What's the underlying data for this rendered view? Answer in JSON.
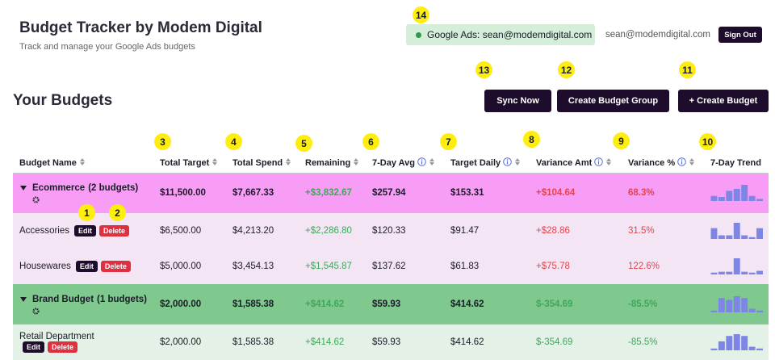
{
  "header": {
    "title": "Budget Tracker by Modem Digital",
    "subtitle": "Track and manage your Google Ads budgets",
    "connection": "Google Ads: sean@modemdigital.com",
    "user": "sean@modemdigital.com",
    "sign_out": "Sign Out"
  },
  "section": {
    "title": "Your Budgets",
    "buttons": [
      "Sync Now",
      "Create Budget Group",
      "+ Create Budget"
    ]
  },
  "markers": [
    "1",
    "2",
    "3",
    "4",
    "5",
    "6",
    "7",
    "8",
    "9",
    "10",
    "11",
    "12",
    "13",
    "14"
  ],
  "actions": {
    "edit": "Edit",
    "delete": "Delete"
  },
  "table": {
    "columns": [
      {
        "label": "Budget Name",
        "info": false,
        "sort": true
      },
      {
        "label": "Total Target",
        "info": false,
        "sort": true
      },
      {
        "label": "Total Spend",
        "info": false,
        "sort": true
      },
      {
        "label": "Remaining",
        "info": false,
        "sort": true
      },
      {
        "label": "7-Day Avg",
        "info": true,
        "sort": true
      },
      {
        "label": "Target Daily",
        "info": true,
        "sort": true
      },
      {
        "label": "Variance Amt",
        "info": true,
        "sort": true
      },
      {
        "label": "Variance %",
        "info": true,
        "sort": true
      },
      {
        "label": "7-Day Trend",
        "info": false,
        "sort": false
      }
    ],
    "trend_color": "#7d86e6",
    "rows": [
      {
        "type": "group",
        "name": "Ecommerce",
        "note": "(2 budgets)",
        "background": "#f79df6",
        "variance_color": "#e8424a",
        "cells": [
          "$11,500.00",
          "$7,667.33",
          "+$3,832.67",
          "$257.94",
          "$153.31",
          "+$104.64",
          "68.3%"
        ],
        "trend": [
          5,
          4,
          10,
          12,
          16,
          5,
          2
        ]
      },
      {
        "type": "item",
        "name": "Accessories",
        "background": "#f3e5f3",
        "variance_color": "#e8424a",
        "cells": [
          "$6,500.00",
          "$4,213.20",
          "+$2,286.80",
          "$120.33",
          "$91.47",
          "+$28.86",
          "31.5%"
        ],
        "trend": [
          12,
          4,
          4,
          18,
          4,
          2,
          12
        ]
      },
      {
        "type": "item",
        "name": "Housewares",
        "background": "#f3e5f3",
        "variance_color": "#e8424a",
        "cells": [
          "$5,000.00",
          "$3,454.13",
          "+$1,545.87",
          "$137.62",
          "$61.83",
          "+$75.78",
          "122.6%"
        ],
        "trend": [
          2,
          3,
          3,
          18,
          3,
          2,
          4
        ]
      },
      {
        "type": "group",
        "name": "Brand Budget",
        "note": "(1 budgets)",
        "background": "#7fc98f",
        "variance_color": "#3ea85a",
        "cells": [
          "$2,000.00",
          "$1,585.38",
          "+$414.62",
          "$59.93",
          "$414.62",
          "$-354.69",
          "-85.5%"
        ],
        "trend": [
          2,
          16,
          14,
          18,
          16,
          4,
          2
        ]
      },
      {
        "type": "item",
        "name": "Retail Department",
        "background": "#e3f1e6",
        "variance_color": "#3ea85a",
        "cells": [
          "$2,000.00",
          "$1,585.38",
          "+$414.62",
          "$59.93",
          "$414.62",
          "$-354.69",
          "-85.5%"
        ],
        "trend": [
          2,
          10,
          16,
          18,
          16,
          4,
          2
        ]
      }
    ]
  }
}
